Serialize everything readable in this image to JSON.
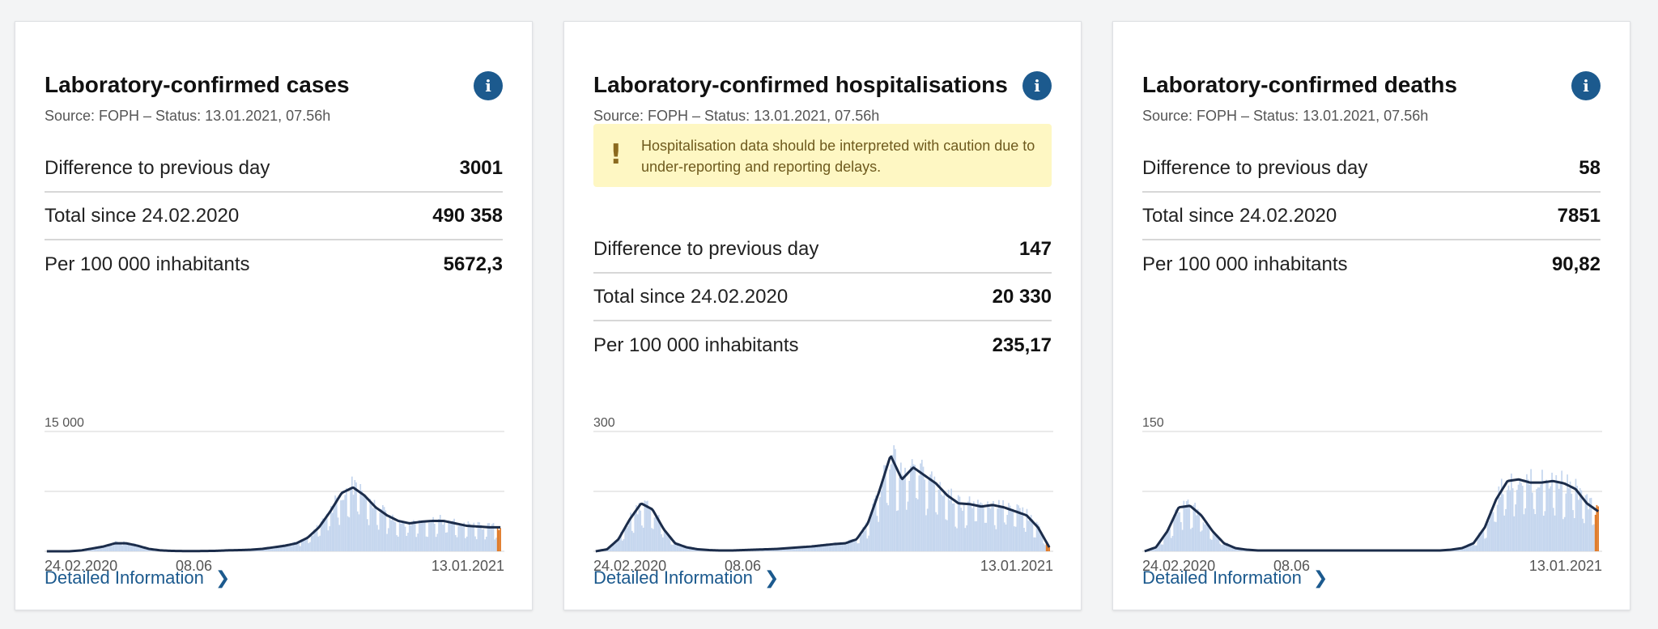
{
  "colors": {
    "accent": "#1c5a8e",
    "bar": "#c5d6ee",
    "line": "#1b2c4a",
    "incomplete": "#e07b2a",
    "warning_bg": "#fef7c3"
  },
  "cards": [
    {
      "title": "Laboratory-confirmed cases",
      "source": "Source: FOPH – Status: 13.01.2021, 07.56h",
      "info_icon": "i",
      "stats": [
        {
          "label": "Difference to previous day",
          "value": "3001"
        },
        {
          "label": "Total since 24.02.2020",
          "value": "490 358"
        },
        {
          "label": "Per 100 000 inhabitants",
          "value": "5672,3"
        }
      ],
      "link_label": "Detailed Information",
      "chevron": "❯",
      "chart_data": {
        "type": "bar",
        "overlay": "line (rolling average)",
        "ytick_label": "15 000",
        "ylim": [
          0,
          15000
        ],
        "x_start_label": "24.02.2020",
        "x_mid_label": "08.06",
        "x_end_label": "13.01.2021",
        "num_days": 325,
        "series": [
          {
            "values": [
              0,
              0,
              0,
              100,
              350,
              600,
              1000,
              1000,
              700,
              300,
              120,
              50,
              30,
              25,
              40,
              60,
              120,
              150,
              200,
              300,
              500,
              700,
              1000,
              1700,
              3000,
              5000,
              7300,
              8000,
              7000,
              5500,
              4500,
              3800,
              3500,
              3700,
              3800,
              3800,
              3500,
              3200,
              3100,
              3000,
              3001
            ]
          }
        ]
      }
    },
    {
      "title": "Laboratory-confirmed hospitalisations",
      "source": "Source: FOPH – Status: 13.01.2021, 07.56h",
      "info_icon": "i",
      "warning_icon": "!",
      "warning": "Hospitalisation data should be interpreted with caution due to under-reporting and reporting delays.",
      "stats": [
        {
          "label": "Difference to previous day",
          "value": "147"
        },
        {
          "label": "Total since 24.02.2020",
          "value": "20 330"
        },
        {
          "label": "Per 100 000 inhabitants",
          "value": "235,17"
        }
      ],
      "link_label": "Detailed Information",
      "chevron": "❯",
      "chart_data": {
        "type": "bar",
        "overlay": "line (rolling average)",
        "ytick_label": "300",
        "ylim": [
          0,
          300
        ],
        "x_start_label": "24.02.2020",
        "x_mid_label": "08.06",
        "x_end_label": "13.01.2021",
        "num_days": 325,
        "series": [
          {
            "values": [
              0,
              5,
              30,
              80,
              120,
              105,
              55,
              20,
              10,
              5,
              3,
              2,
              2,
              3,
              4,
              5,
              6,
              8,
              10,
              12,
              15,
              18,
              20,
              30,
              70,
              150,
              240,
              180,
              210,
              190,
              170,
              140,
              120,
              118,
              112,
              116,
              110,
              100,
              90,
              60,
              10
            ]
          }
        ]
      }
    },
    {
      "title": "Laboratory-confirmed deaths",
      "source": "Source: FOPH – Status: 13.01.2021, 07.56h",
      "info_icon": "i",
      "stats": [
        {
          "label": "Difference to previous day",
          "value": "58"
        },
        {
          "label": "Total since 24.02.2020",
          "value": "7851"
        },
        {
          "label": "Per 100 000 inhabitants",
          "value": "90,82"
        }
      ],
      "link_label": "Detailed Information",
      "chevron": "❯",
      "chart_data": {
        "type": "bar",
        "overlay": "line (rolling average)",
        "ytick_label": "150",
        "ylim": [
          0,
          150
        ],
        "x_start_label": "24.02.2020",
        "x_mid_label": "08.06",
        "x_end_label": "13.01.2021",
        "num_days": 325,
        "series": [
          {
            "values": [
              0,
              5,
              25,
              55,
              57,
              45,
              25,
              10,
              4,
              2,
              1,
              1,
              1,
              1,
              1,
              1,
              1,
              1,
              1,
              1,
              1,
              1,
              1,
              1,
              1,
              1,
              1,
              2,
              4,
              10,
              30,
              65,
              88,
              90,
              86,
              86,
              88,
              85,
              78,
              60,
              50
            ]
          }
        ]
      }
    }
  ]
}
